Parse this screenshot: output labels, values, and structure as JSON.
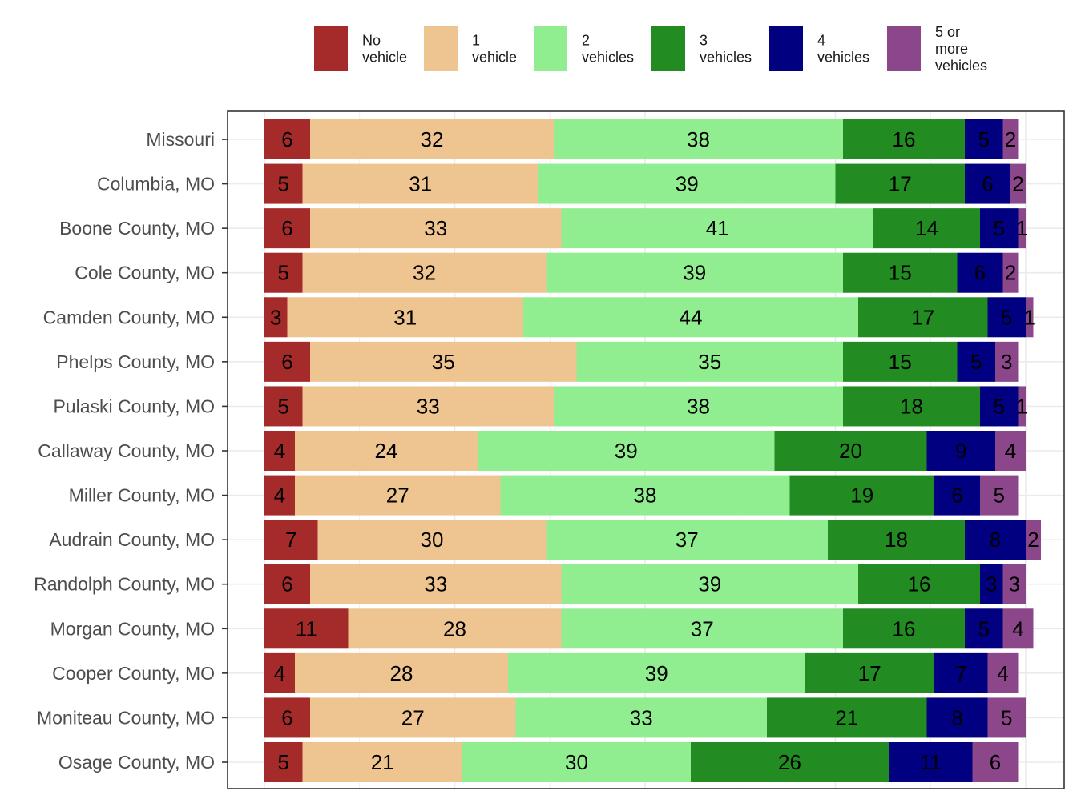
{
  "chart_data": {
    "type": "bar",
    "orientation": "horizontal",
    "stacked": true,
    "normalized_percent": true,
    "xlim": [
      0,
      100
    ],
    "grid": true,
    "legend_position": "top",
    "title": "",
    "xlabel": "",
    "ylabel": "",
    "categories": [
      "Missouri",
      "Columbia, MO",
      "Boone County, MO",
      "Cole County, MO",
      "Camden County, MO",
      "Phelps County, MO",
      "Pulaski County, MO",
      "Callaway County, MO",
      "Miller County, MO",
      "Audrain County, MO",
      "Randolph County, MO",
      "Morgan County, MO",
      "Cooper County, MO",
      "Moniteau County, MO",
      "Osage County, MO"
    ],
    "series": [
      {
        "name": "No vehicle",
        "legend_lines": [
          "No",
          "vehicle"
        ],
        "color": "#A52A2A",
        "values": [
          6,
          5,
          6,
          5,
          3,
          6,
          5,
          4,
          4,
          7,
          6,
          11,
          4,
          6,
          5
        ]
      },
      {
        "name": "1 vehicle",
        "legend_lines": [
          "1",
          "vehicle"
        ],
        "color": "#EEC591",
        "values": [
          32,
          31,
          33,
          32,
          31,
          35,
          33,
          24,
          27,
          30,
          33,
          28,
          28,
          27,
          21
        ]
      },
      {
        "name": "2 vehicles",
        "legend_lines": [
          "2",
          "vehicles"
        ],
        "color": "#90EE90",
        "values": [
          38,
          39,
          41,
          39,
          44,
          35,
          38,
          39,
          38,
          37,
          39,
          37,
          39,
          33,
          30
        ]
      },
      {
        "name": "3 vehicles",
        "legend_lines": [
          "3",
          "vehicles"
        ],
        "color": "#228B22",
        "values": [
          16,
          17,
          14,
          15,
          17,
          15,
          18,
          20,
          19,
          18,
          16,
          16,
          17,
          21,
          26
        ]
      },
      {
        "name": "4 vehicles",
        "legend_lines": [
          "4",
          "vehicles"
        ],
        "color": "#000080",
        "values": [
          5,
          6,
          5,
          6,
          5,
          5,
          5,
          9,
          6,
          8,
          3,
          5,
          7,
          8,
          11
        ]
      },
      {
        "name": "5 or more vehicles",
        "legend_lines": [
          "5 or",
          "more",
          "vehicles"
        ],
        "color": "#8B4789",
        "values": [
          2,
          2,
          1,
          2,
          1,
          3,
          1,
          4,
          5,
          2,
          3,
          4,
          4,
          5,
          6
        ]
      }
    ]
  }
}
